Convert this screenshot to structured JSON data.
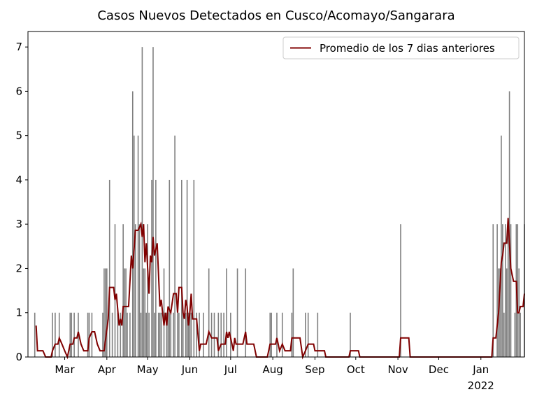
{
  "chart_data": {
    "type": "bar_line",
    "title": "Casos Nuevos Detectados en Cusco/Acomayo/Sangarara",
    "xlim": [
      0,
      365
    ],
    "xticks": [
      {
        "value": 27,
        "label": "Mar"
      },
      {
        "value": 58,
        "label": "Apr"
      },
      {
        "value": 88,
        "label": "May"
      },
      {
        "value": 119,
        "label": "Jun"
      },
      {
        "value": 149,
        "label": "Jul"
      },
      {
        "value": 180,
        "label": "Aug"
      },
      {
        "value": 211,
        "label": "Sep"
      },
      {
        "value": 241,
        "label": "Oct"
      },
      {
        "value": 272,
        "label": "Nov"
      },
      {
        "value": 302,
        "label": "Dec"
      },
      {
        "value": 333,
        "label": "Jan"
      }
    ],
    "year_label": "2022",
    "ylim": [
      0,
      7.35
    ],
    "yticks": [
      0,
      1,
      2,
      3,
      4,
      5,
      6,
      7
    ],
    "legend": "upper right",
    "series": [
      {
        "type": "bar",
        "color": "#808080",
        "x": [
          5,
          18,
          20,
          23,
          31,
          32,
          34,
          37,
          44,
          45,
          47,
          55,
          56,
          57,
          58,
          60,
          62,
          64,
          66,
          68,
          70,
          71,
          72,
          73,
          75,
          77,
          78,
          79,
          81,
          82,
          83,
          84,
          85,
          86,
          87,
          88,
          89,
          91,
          92,
          93,
          94,
          96,
          97,
          98,
          100,
          102,
          103,
          104,
          105,
          107,
          108,
          110,
          111,
          113,
          114,
          116,
          117,
          118,
          119,
          120,
          122,
          124,
          126,
          129,
          133,
          135,
          137,
          140,
          142,
          144,
          146,
          149,
          154,
          160,
          178,
          179,
          183,
          187,
          194,
          195,
          204,
          206,
          213,
          237,
          274,
          342,
          345,
          346,
          347,
          348,
          349,
          350,
          351,
          352,
          353,
          354,
          355,
          358,
          359,
          360,
          361,
          362,
          365
        ],
        "values": [
          1,
          1,
          1,
          1,
          1,
          1,
          1,
          1,
          1,
          1,
          1,
          1,
          2,
          2,
          2,
          4,
          1,
          3,
          1,
          1,
          3,
          2,
          2,
          1,
          1,
          6,
          5,
          3,
          5,
          3,
          1,
          7,
          2,
          2,
          1,
          3,
          1,
          4,
          7,
          1,
          4,
          1,
          1,
          1,
          2,
          1,
          1,
          4,
          1,
          1,
          5,
          1,
          1,
          4,
          1,
          1,
          4,
          1,
          1,
          1,
          4,
          1,
          1,
          1,
          2,
          1,
          1,
          1,
          1,
          1,
          2,
          1,
          2,
          2,
          1,
          1,
          1,
          1,
          1,
          2,
          1,
          1,
          1,
          1,
          3,
          3,
          3,
          2,
          2,
          5,
          3,
          1,
          3,
          2,
          3,
          6,
          3,
          1,
          3,
          3,
          2,
          1,
          3
        ]
      },
      {
        "type": "line",
        "name": "Promedio de los 7 dias anteriores",
        "color": "#800000",
        "x": [
          6,
          7,
          11,
          13,
          17,
          18,
          20,
          22,
          23,
          25,
          27,
          29,
          31,
          33,
          34,
          36,
          37,
          39,
          41,
          44,
          45,
          47,
          49,
          51,
          53,
          56,
          59,
          60,
          63,
          64,
          65,
          67,
          68,
          69,
          70,
          72,
          74,
          76,
          77,
          79,
          81,
          83,
          84,
          85,
          86,
          87,
          89,
          90,
          91,
          92,
          93,
          95,
          97,
          98,
          100,
          101,
          102,
          103,
          105,
          107,
          109,
          110,
          111,
          113,
          114,
          115,
          116,
          117,
          118,
          119,
          120,
          121,
          124,
          126,
          127,
          131,
          133,
          135,
          139,
          140,
          142,
          145,
          146,
          147,
          148,
          150,
          151,
          152,
          153,
          156,
          158,
          160,
          161,
          166,
          168,
          176,
          178,
          182,
          183,
          184,
          185,
          187,
          189,
          193,
          194,
          200,
          202,
          204,
          206,
          210,
          211,
          218,
          219,
          236,
          237,
          243,
          244,
          273,
          274,
          280,
          281,
          341,
          342,
          344,
          346,
          348,
          349,
          350,
          352,
          353,
          354,
          355,
          357,
          359,
          360,
          361,
          362,
          364,
          365
        ],
        "values": [
          0.71,
          0.14,
          0.14,
          0,
          0,
          0.14,
          0.29,
          0.29,
          0.43,
          0.29,
          0.14,
          0,
          0.29,
          0.29,
          0.43,
          0.43,
          0.57,
          0.29,
          0.14,
          0.14,
          0.43,
          0.57,
          0.57,
          0.29,
          0.14,
          0.14,
          0.86,
          1.57,
          1.57,
          1.29,
          1.43,
          0.71,
          0.86,
          0.71,
          1.14,
          1.14,
          1.14,
          2.29,
          2.0,
          2.86,
          2.86,
          3.0,
          2.71,
          3.0,
          2.14,
          2.57,
          1.43,
          2.29,
          2.14,
          2.71,
          2.29,
          2.57,
          1.14,
          1.29,
          0.71,
          1.0,
          0.71,
          1.14,
          1.0,
          1.43,
          1.43,
          1.0,
          1.57,
          1.57,
          1.0,
          0.86,
          1.29,
          1.14,
          0.71,
          1.0,
          1.43,
          0.86,
          0.86,
          0.14,
          0.29,
          0.29,
          0.57,
          0.43,
          0.43,
          0.14,
          0.29,
          0.29,
          0.57,
          0.43,
          0.57,
          0.29,
          0.14,
          0.43,
          0.29,
          0.29,
          0.29,
          0.57,
          0.29,
          0.29,
          0,
          0,
          0.29,
          0.29,
          0.43,
          0.29,
          0.14,
          0.29,
          0.14,
          0.14,
          0.43,
          0.43,
          0,
          0.14,
          0.29,
          0.29,
          0.14,
          0.14,
          0,
          0,
          0.14,
          0.14,
          0,
          0,
          0.43,
          0.43,
          0,
          0,
          0.43,
          0.43,
          1.0,
          2.14,
          2.29,
          2.57,
          2.57,
          3.14,
          2.57,
          2.0,
          1.71,
          1.71,
          1.0,
          1.0,
          1.14,
          1.14,
          1.43
        ]
      }
    ]
  }
}
